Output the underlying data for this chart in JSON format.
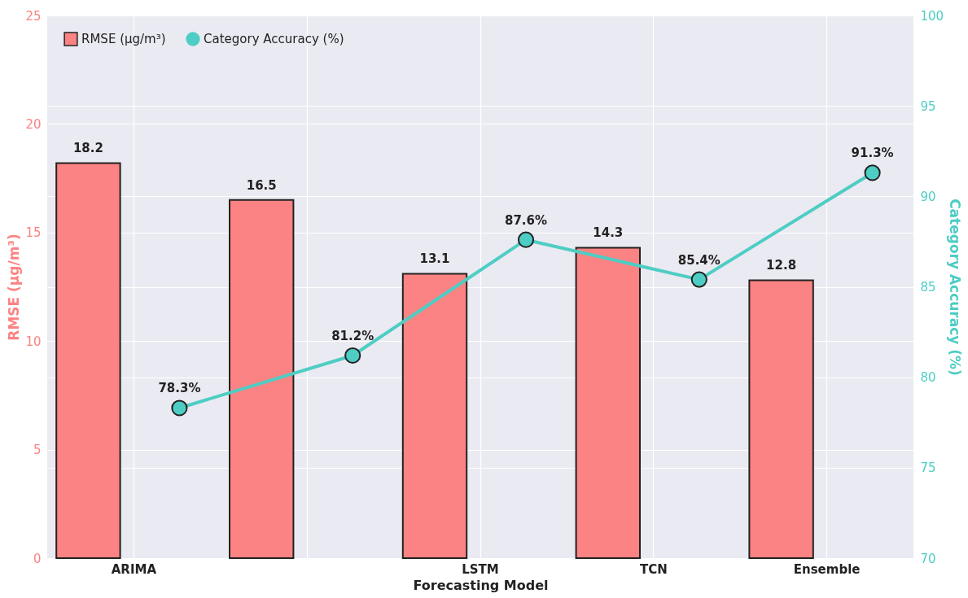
{
  "chart_data": {
    "type": "bar",
    "xlabel": "Forecasting Model",
    "ylabel": "RMSE (μg/m³)",
    "y2label": "Category Accuracy (%)",
    "categories": [
      "ARIMA",
      null,
      "LSTM",
      "TCN",
      "Ensemble"
    ],
    "ylim": [
      0,
      25
    ],
    "yticks": [
      0,
      5,
      10,
      15,
      20,
      25
    ],
    "y2lim": [
      70,
      100
    ],
    "y2ticks": [
      70,
      75,
      80,
      85,
      90,
      95,
      100
    ],
    "grid": true,
    "legend": "top left",
    "marker": "circle",
    "series": [
      {
        "name": "RMSE (μg/m³)",
        "color": "#fc8383",
        "values": [
          18.2,
          16.5,
          13.1,
          14.3,
          12.8
        ],
        "value_labels": [
          "18.2",
          "16.5",
          "13.1",
          "14.3",
          "12.8"
        ]
      },
      {
        "name": "Category Accuracy (%)",
        "type": "line",
        "axis": "y2",
        "color": "#4ecdc4",
        "values": [
          78.3,
          81.2,
          87.6,
          85.4,
          91.3
        ],
        "value_labels": [
          "78.3%",
          "81.2%",
          "87.6%",
          "85.4%",
          "91.3%"
        ]
      }
    ]
  }
}
